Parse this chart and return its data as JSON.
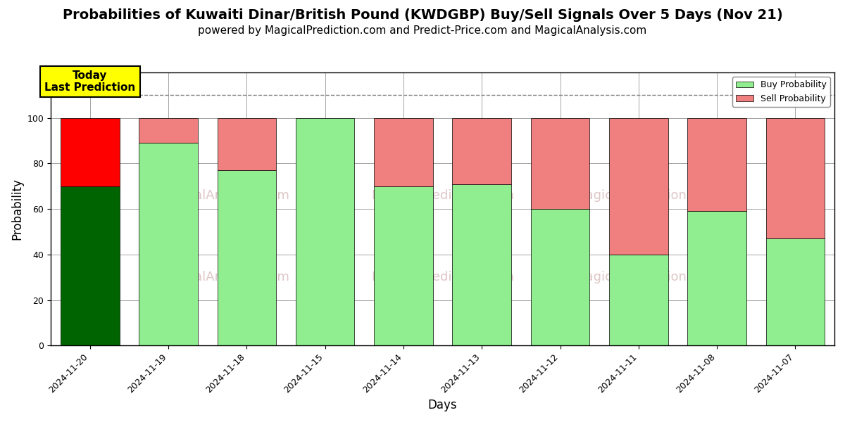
{
  "title": "Probabilities of Kuwaiti Dinar/British Pound (KWDGBP) Buy/Sell Signals Over 5 Days (Nov 21)",
  "subtitle": "powered by MagicalPrediction.com and Predict-Price.com and MagicalAnalysis.com",
  "xlabel": "Days",
  "ylabel": "Probability",
  "categories": [
    "2024-11-20",
    "2024-11-19",
    "2024-11-18",
    "2024-11-15",
    "2024-11-14",
    "2024-11-13",
    "2024-11-12",
    "2024-11-11",
    "2024-11-08",
    "2024-11-07"
  ],
  "buy_values": [
    70,
    89,
    77,
    100,
    70,
    71,
    60,
    40,
    59,
    47
  ],
  "sell_values": [
    30,
    11,
    23,
    0,
    30,
    29,
    40,
    60,
    41,
    53
  ],
  "buy_color_today": "#006400",
  "sell_color_today": "#ff0000",
  "buy_color_normal": "#90EE90",
  "sell_color_normal": "#F08080",
  "today_annotation": "Today\nLast Prediction",
  "annotation_bg_color": "#ffff00",
  "dashed_line_y": 110,
  "ylim": [
    0,
    120
  ],
  "yticks": [
    0,
    20,
    40,
    60,
    80,
    100
  ],
  "watermark_color": "#c8a0a0",
  "legend_buy_label": "Buy Probability",
  "legend_sell_label": "Sell Probability",
  "figsize": [
    12.0,
    6.0
  ],
  "dpi": 100,
  "title_fontsize": 14,
  "subtitle_fontsize": 11,
  "axis_label_fontsize": 12,
  "tick_fontsize": 9
}
